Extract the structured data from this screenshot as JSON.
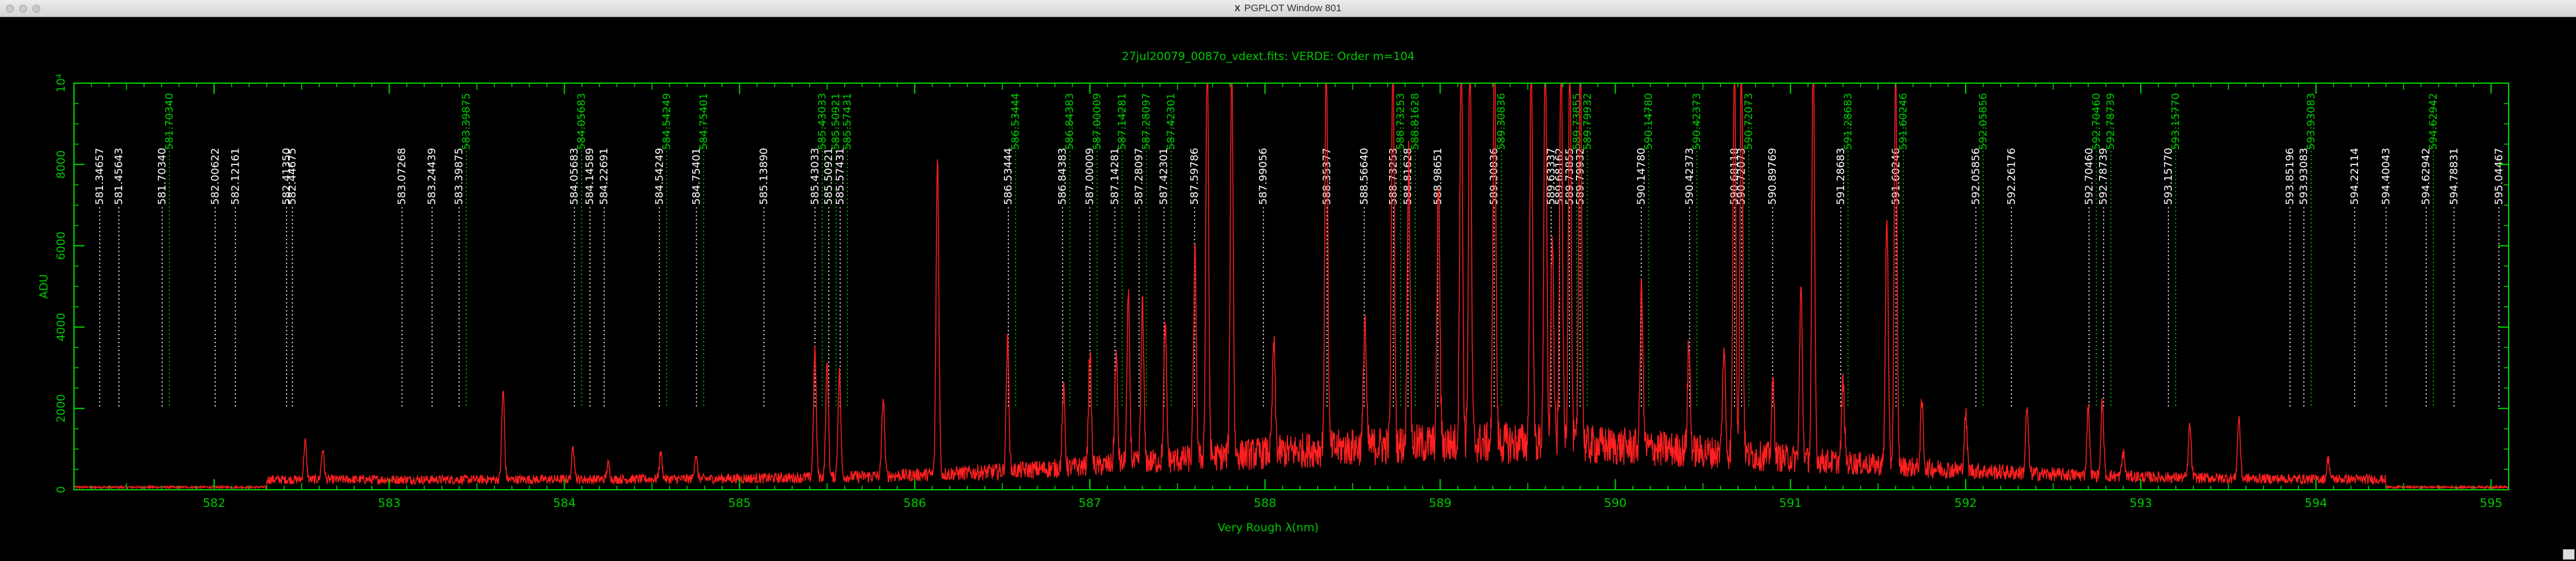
{
  "window": {
    "title": "PGPLOT Window 801"
  },
  "plot": {
    "title": "27jul20079_0087o_vdext.fits: VERDE: Order m=104",
    "xlabel": "Very Rough λ(nm)",
    "ylabel": "ADU",
    "colors": {
      "frame": "#00c800",
      "spectrum": "#ff2020",
      "line_white": "#ffffff",
      "line_green": "#00c800"
    }
  },
  "chart_data": {
    "type": "line",
    "xlim": [
      581.2,
      595.1
    ],
    "ylim": [
      0,
      10000
    ],
    "x_ticks": [
      "582",
      "583",
      "584",
      "585",
      "586",
      "587",
      "588",
      "589",
      "590",
      "591",
      "592",
      "593",
      "594",
      "595"
    ],
    "y_ticks": [
      "0",
      "2000",
      "4000",
      "6000",
      "8000",
      "10⁴"
    ],
    "line_markers": [
      {
        "label": "581.34657",
        "color": "white"
      },
      {
        "label": "581.45643",
        "color": "white"
      },
      {
        "label": "581.70340",
        "color": "white"
      },
      {
        "label": "581.70340",
        "color": "green"
      },
      {
        "label": "582.00622",
        "color": "white"
      },
      {
        "label": "582.12161",
        "color": "white"
      },
      {
        "label": "582.41350",
        "color": "white"
      },
      {
        "label": "582.44675",
        "color": "white"
      },
      {
        "label": "583.07268",
        "color": "white"
      },
      {
        "label": "583.24439",
        "color": "white"
      },
      {
        "label": "583.39875",
        "color": "white"
      },
      {
        "label": "583.39875",
        "color": "green"
      },
      {
        "label": "584.05683",
        "color": "white"
      },
      {
        "label": "584.05683",
        "color": "green"
      },
      {
        "label": "584.14589",
        "color": "white"
      },
      {
        "label": "584.22691",
        "color": "white"
      },
      {
        "label": "584.54249",
        "color": "white"
      },
      {
        "label": "584.54249",
        "color": "green"
      },
      {
        "label": "584.75401",
        "color": "white"
      },
      {
        "label": "584.75401",
        "color": "green"
      },
      {
        "label": "585.13890",
        "color": "white"
      },
      {
        "label": "585.43033",
        "color": "white"
      },
      {
        "label": "585.43033",
        "color": "green"
      },
      {
        "label": "585.50921",
        "color": "white"
      },
      {
        "label": "585.50921",
        "color": "green"
      },
      {
        "label": "585.57431",
        "color": "white"
      },
      {
        "label": "585.57431",
        "color": "green"
      },
      {
        "label": "586.53444",
        "color": "white"
      },
      {
        "label": "586.53444",
        "color": "green"
      },
      {
        "label": "586.84383",
        "color": "white"
      },
      {
        "label": "586.84383",
        "color": "green"
      },
      {
        "label": "587.00009",
        "color": "white"
      },
      {
        "label": "587.00009",
        "color": "green"
      },
      {
        "label": "587.14281",
        "color": "white"
      },
      {
        "label": "587.14281",
        "color": "green"
      },
      {
        "label": "587.28097",
        "color": "white"
      },
      {
        "label": "587.28097",
        "color": "green"
      },
      {
        "label": "587.42301",
        "color": "white"
      },
      {
        "label": "587.42301",
        "color": "green"
      },
      {
        "label": "587.59786",
        "color": "white"
      },
      {
        "label": "587.99056",
        "color": "white"
      },
      {
        "label": "588.35377",
        "color": "white"
      },
      {
        "label": "588.56640",
        "color": "white"
      },
      {
        "label": "588.73253",
        "color": "white"
      },
      {
        "label": "588.73253",
        "color": "green"
      },
      {
        "label": "588.81628",
        "color": "white"
      },
      {
        "label": "588.81628",
        "color": "green"
      },
      {
        "label": "588.98651",
        "color": "white"
      },
      {
        "label": "589.30836",
        "color": "white"
      },
      {
        "label": "589.30836",
        "color": "green"
      },
      {
        "label": "589.63337",
        "color": "white"
      },
      {
        "label": "589.68162",
        "color": "white"
      },
      {
        "label": "589.73855",
        "color": "white"
      },
      {
        "label": "589.73855",
        "color": "green"
      },
      {
        "label": "589.79932",
        "color": "white"
      },
      {
        "label": "589.79932",
        "color": "green"
      },
      {
        "label": "590.14780",
        "color": "white"
      },
      {
        "label": "590.14780",
        "color": "green"
      },
      {
        "label": "590.42373",
        "color": "white"
      },
      {
        "label": "590.42373",
        "color": "green"
      },
      {
        "label": "590.68118",
        "color": "white"
      },
      {
        "label": "590.72073",
        "color": "white"
      },
      {
        "label": "590.72073",
        "color": "green"
      },
      {
        "label": "590.89769",
        "color": "white"
      },
      {
        "label": "591.28683",
        "color": "white"
      },
      {
        "label": "591.28683",
        "color": "green"
      },
      {
        "label": "591.60246",
        "color": "white"
      },
      {
        "label": "591.60246",
        "color": "green"
      },
      {
        "label": "592.05856",
        "color": "white"
      },
      {
        "label": "592.05856",
        "color": "green"
      },
      {
        "label": "592.26176",
        "color": "white"
      },
      {
        "label": "592.70460",
        "color": "white"
      },
      {
        "label": "592.70460",
        "color": "green"
      },
      {
        "label": "592.78739",
        "color": "white"
      },
      {
        "label": "592.78739",
        "color": "green"
      },
      {
        "label": "593.15770",
        "color": "white"
      },
      {
        "label": "593.15770",
        "color": "green"
      },
      {
        "label": "593.85196",
        "color": "white"
      },
      {
        "label": "593.93083",
        "color": "white"
      },
      {
        "label": "593.93083",
        "color": "green"
      },
      {
        "label": "594.22114",
        "color": "white"
      },
      {
        "label": "594.40043",
        "color": "white"
      },
      {
        "label": "594.62942",
        "color": "white"
      },
      {
        "label": "594.62942",
        "color": "green"
      },
      {
        "label": "594.78831",
        "color": "white"
      },
      {
        "label": "595.04467",
        "color": "white"
      }
    ],
    "peaks": [
      [
        582.52,
        950
      ],
      [
        582.62,
        750
      ],
      [
        583.65,
        2200
      ],
      [
        584.05,
        800
      ],
      [
        584.25,
        380
      ],
      [
        584.55,
        650
      ],
      [
        584.75,
        600
      ],
      [
        585.43,
        3100
      ],
      [
        585.5,
        2800
      ],
      [
        585.57,
        2600
      ],
      [
        585.82,
        1900
      ],
      [
        586.13,
        7800
      ],
      [
        586.53,
        3200
      ],
      [
        586.85,
        1900
      ],
      [
        587.0,
        2800
      ],
      [
        587.15,
        2700
      ],
      [
        587.22,
        4100
      ],
      [
        587.3,
        3900
      ],
      [
        587.43,
        3300
      ],
      [
        587.6,
        5000
      ],
      [
        587.67,
        10000
      ],
      [
        587.81,
        10000
      ],
      [
        588.05,
        2700
      ],
      [
        588.35,
        10000
      ],
      [
        588.57,
        3200
      ],
      [
        588.73,
        10000
      ],
      [
        588.82,
        7200
      ],
      [
        588.99,
        6400
      ],
      [
        589.12,
        10000
      ],
      [
        589.17,
        10000
      ],
      [
        589.31,
        10000
      ],
      [
        589.52,
        10000
      ],
      [
        589.6,
        10000
      ],
      [
        589.64,
        5200
      ],
      [
        589.69,
        10000
      ],
      [
        589.74,
        10000
      ],
      [
        589.8,
        10000
      ],
      [
        590.15,
        4000
      ],
      [
        590.42,
        2600
      ],
      [
        590.62,
        2600
      ],
      [
        590.68,
        10000
      ],
      [
        590.72,
        10000
      ],
      [
        590.9,
        1800
      ],
      [
        591.06,
        4200
      ],
      [
        591.13,
        10000
      ],
      [
        591.3,
        2000
      ],
      [
        591.55,
        6200
      ],
      [
        591.6,
        10000
      ],
      [
        591.75,
        1600
      ],
      [
        592.0,
        1400
      ],
      [
        592.35,
        1600
      ],
      [
        592.7,
        1700
      ],
      [
        592.78,
        1800
      ],
      [
        592.9,
        600
      ],
      [
        593.28,
        1300
      ],
      [
        593.56,
        1500
      ],
      [
        594.07,
        500
      ]
    ]
  }
}
